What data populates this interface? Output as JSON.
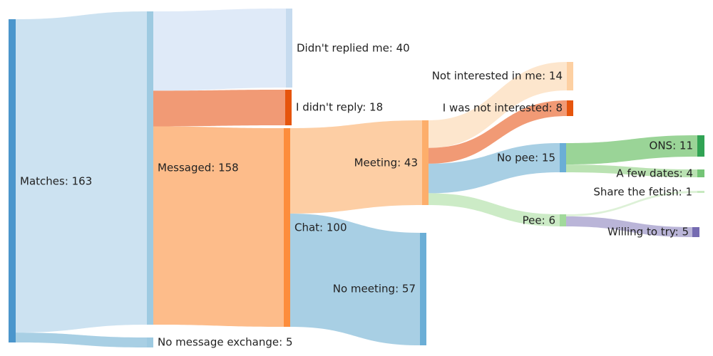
{
  "chart_data": {
    "type": "sankey",
    "nodes": [
      {
        "id": "matches",
        "label": "Matches: 163",
        "color": "#4b96cc"
      },
      {
        "id": "messaged",
        "label": "Messaged: 158",
        "color": "#9ecae1"
      },
      {
        "id": "no_exchange",
        "label": "No message exchange: 5",
        "color": "#9ecae1"
      },
      {
        "id": "didnt_reply_me",
        "label": "Didn't replied me: 40",
        "color": "#c6dbef"
      },
      {
        "id": "i_didnt_reply",
        "label": "I didn't reply: 18",
        "color": "#e6550d"
      },
      {
        "id": "chat",
        "label": "Chat: 100",
        "color": "#fd8d3c"
      },
      {
        "id": "meeting",
        "label": "Meeting: 43",
        "color": "#fdae6b"
      },
      {
        "id": "no_meeting",
        "label": "No meeting: 57",
        "color": "#6baed6"
      },
      {
        "id": "not_interested_me",
        "label": "Not interested in me: 14",
        "color": "#fdd0a2"
      },
      {
        "id": "i_not_interested",
        "label": "I was not interested: 8",
        "color": "#e6550d"
      },
      {
        "id": "no_pee",
        "label": "No pee: 15",
        "color": "#6baed6"
      },
      {
        "id": "pee",
        "label": "Pee: 6",
        "color": "#a1d99b"
      },
      {
        "id": "ons",
        "label": "ONS: 11",
        "color": "#31a354"
      },
      {
        "id": "few_dates",
        "label": "A few dates: 4",
        "color": "#74c476"
      },
      {
        "id": "share_fetish",
        "label": "Share the fetish: 1",
        "color": "#c7e9c0"
      },
      {
        "id": "willing",
        "label": "Willing to try: 5",
        "color": "#756bb1"
      }
    ],
    "links": [
      {
        "source": "matches",
        "target": "messaged",
        "value": 158,
        "color": "#c6dfef"
      },
      {
        "source": "matches",
        "target": "no_exchange",
        "value": 5,
        "color": "#9ecae1"
      },
      {
        "source": "messaged",
        "target": "didnt_reply_me",
        "value": 40,
        "color": "#dce8f7"
      },
      {
        "source": "messaged",
        "target": "i_didnt_reply",
        "value": 18,
        "color": "#f08f66"
      },
      {
        "source": "messaged",
        "target": "chat",
        "value": 100,
        "color": "#fdb57d"
      },
      {
        "source": "chat",
        "target": "meeting",
        "value": 43,
        "color": "#fdc99a"
      },
      {
        "source": "chat",
        "target": "no_meeting",
        "value": 57,
        "color": "#9ecae1"
      },
      {
        "source": "meeting",
        "target": "not_interested_me",
        "value": 14,
        "color": "#fde3c8"
      },
      {
        "source": "meeting",
        "target": "i_not_interested",
        "value": 8,
        "color": "#f08f66"
      },
      {
        "source": "meeting",
        "target": "no_pee",
        "value": 15,
        "color": "#9ecae1"
      },
      {
        "source": "meeting",
        "target": "pee",
        "value": 6,
        "color": "#c7e9c0"
      },
      {
        "source": "no_pee",
        "target": "ons",
        "value": 11,
        "color": "#8fcf8c"
      },
      {
        "source": "no_pee",
        "target": "few_dates",
        "value": 4,
        "color": "#b2dfaa"
      },
      {
        "source": "pee",
        "target": "share_fetish",
        "value": 1,
        "color": "#d9f0d3"
      },
      {
        "source": "pee",
        "target": "willing",
        "value": 5,
        "color": "#b3add4"
      }
    ]
  }
}
